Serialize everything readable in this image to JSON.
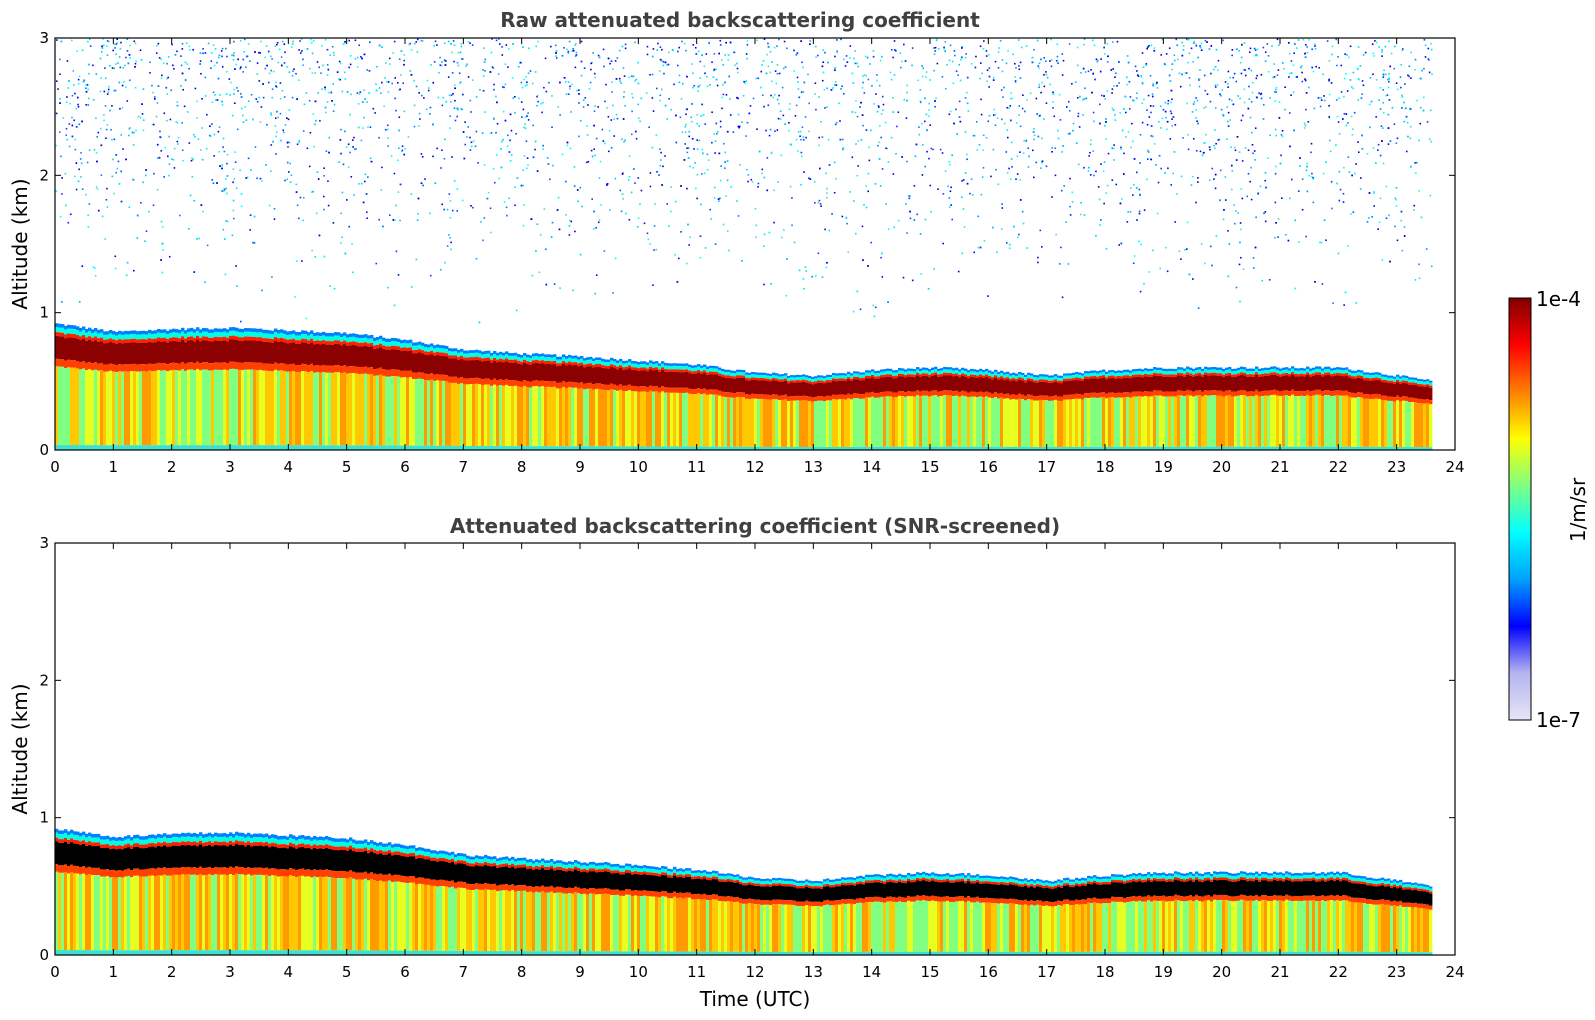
{
  "chart_data": [
    {
      "type": "heatmap",
      "title": "Raw attenuated backscattering coefficient",
      "xlabel": "",
      "ylabel": "Altitude (km)",
      "xlim": [
        0,
        24
      ],
      "ylim": [
        0,
        3
      ],
      "x_ticks": [
        "0",
        "1",
        "2",
        "3",
        "4",
        "5",
        "6",
        "7",
        "8",
        "9",
        "10",
        "11",
        "12",
        "13",
        "14",
        "15",
        "16",
        "17",
        "18",
        "19",
        "20",
        "21",
        "22",
        "23",
        "24"
      ],
      "y_ticks": [
        "0",
        "1",
        "2",
        "3"
      ],
      "data_end_hour": 23.6,
      "noise_region_km": [
        1.0,
        3.0
      ],
      "layer_top_km": {
        "hours": [
          0,
          1,
          2,
          3,
          4,
          5,
          6,
          7,
          8,
          9,
          10,
          11,
          12,
          13,
          14,
          15,
          16,
          17,
          18,
          19,
          20,
          21,
          22,
          23,
          23.6
        ],
        "values": [
          0.92,
          0.86,
          0.88,
          0.89,
          0.87,
          0.85,
          0.8,
          0.73,
          0.7,
          0.68,
          0.65,
          0.62,
          0.56,
          0.54,
          0.58,
          0.6,
          0.58,
          0.54,
          0.58,
          0.6,
          0.6,
          0.6,
          0.6,
          0.54,
          0.5
        ]
      }
    },
    {
      "type": "heatmap",
      "title": "Attenuated backscattering coefficient (SNR-screened)",
      "xlabel": "Time (UTC)",
      "ylabel": "Altitude (km)",
      "xlim": [
        0,
        24
      ],
      "ylim": [
        0,
        3
      ],
      "x_ticks": [
        "0",
        "1",
        "2",
        "3",
        "4",
        "5",
        "6",
        "7",
        "8",
        "9",
        "10",
        "11",
        "12",
        "13",
        "14",
        "15",
        "16",
        "17",
        "18",
        "19",
        "20",
        "21",
        "22",
        "23",
        "24"
      ],
      "y_ticks": [
        "0",
        "1",
        "2",
        "3"
      ],
      "data_end_hour": 23.6,
      "noise_region_km": null,
      "layer_top_km": {
        "hours": [
          0,
          1,
          2,
          3,
          4,
          5,
          6,
          7,
          8,
          9,
          10,
          11,
          12,
          13,
          14,
          15,
          16,
          17,
          18,
          19,
          20,
          21,
          22,
          23,
          23.6
        ],
        "values": [
          0.92,
          0.86,
          0.88,
          0.89,
          0.87,
          0.85,
          0.8,
          0.73,
          0.7,
          0.68,
          0.65,
          0.62,
          0.56,
          0.54,
          0.58,
          0.6,
          0.58,
          0.54,
          0.58,
          0.6,
          0.6,
          0.6,
          0.6,
          0.54,
          0.5
        ]
      }
    }
  ],
  "colorbar": {
    "max_label": "1e-4",
    "min_label": "1e-7",
    "unit_label": "1/m/sr",
    "colormap": "jet",
    "colors": [
      "#e6e6f5",
      "#b4b4f0",
      "#0000ff",
      "#00a0ff",
      "#00ffff",
      "#80ff80",
      "#ffff00",
      "#ff8000",
      "#ff0000",
      "#800000"
    ]
  }
}
